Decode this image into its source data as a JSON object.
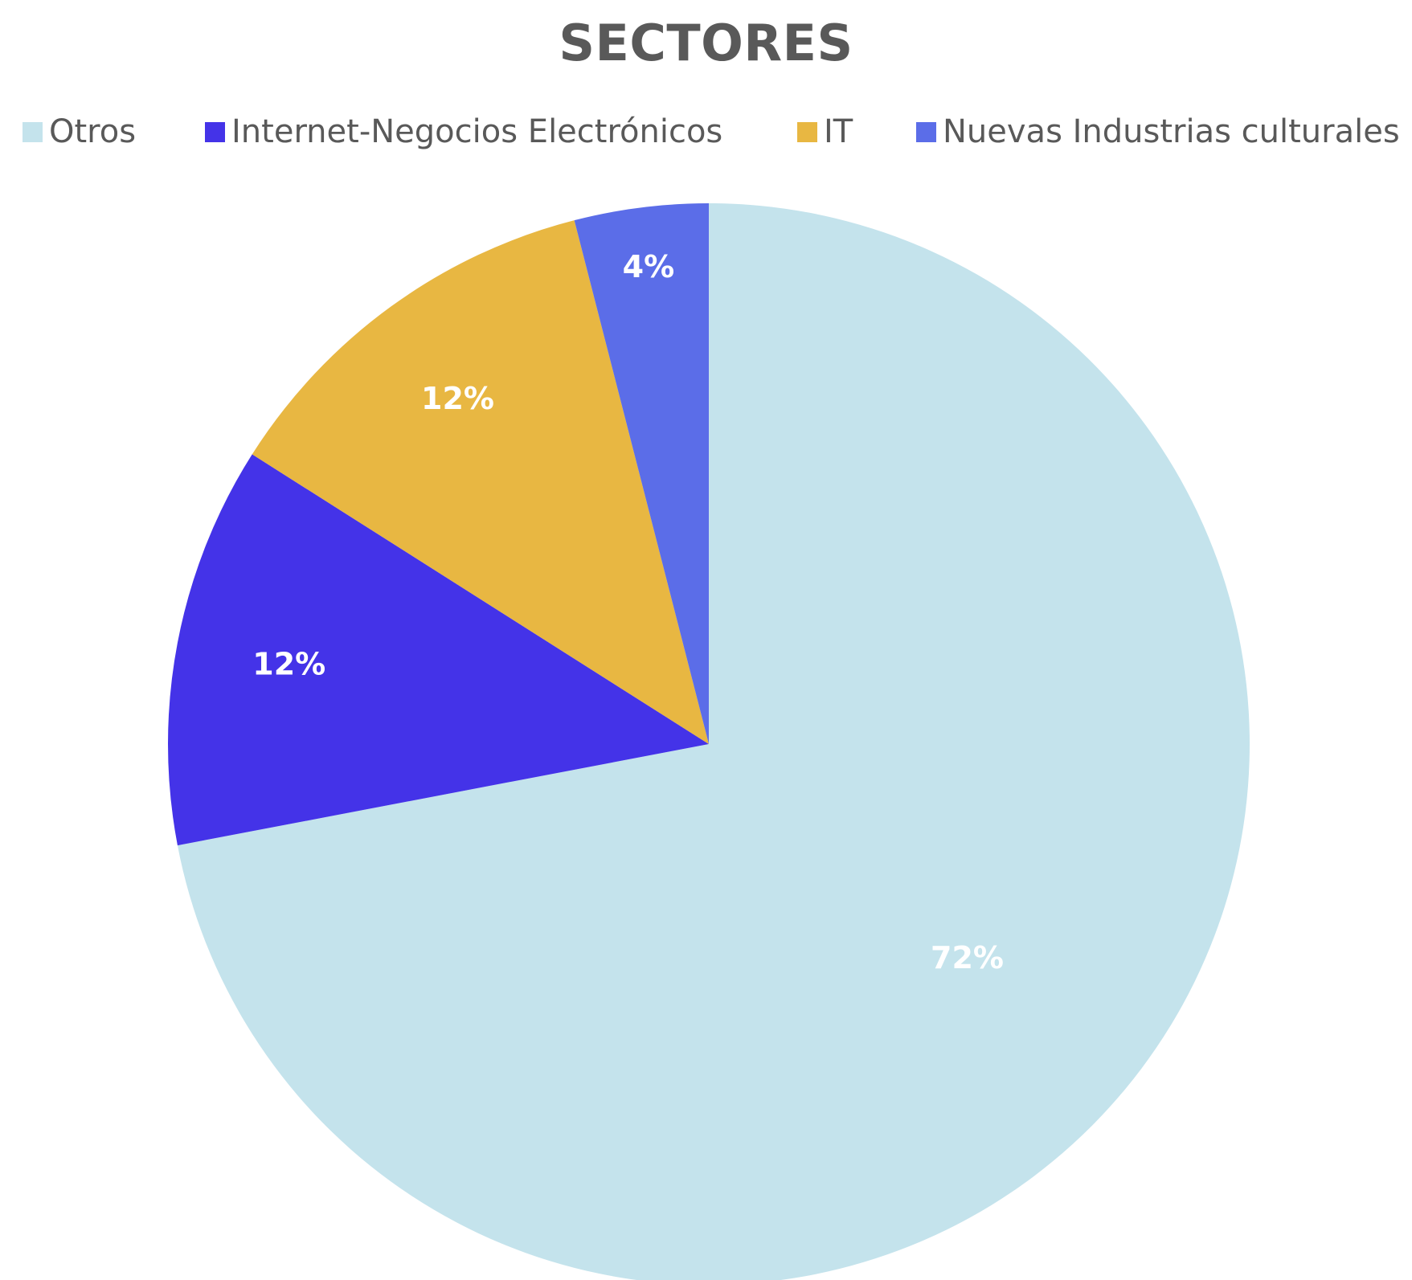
{
  "chart_data": {
    "type": "pie",
    "title": "SECTORES",
    "legend_position": "top",
    "start_angle_deg": 0,
    "direction": "clockwise",
    "categories": [
      "Otros",
      "Internet-Negocios Electrónicos",
      "IT",
      "Nuevas Industrias culturales"
    ],
    "values": [
      72,
      12,
      12,
      4
    ],
    "data_labels": [
      "72%",
      "12%",
      "12%",
      "4%"
    ],
    "colors": [
      "#C4E3EC",
      "#4433E8",
      "#E8B742",
      "#5B6DE8"
    ]
  }
}
